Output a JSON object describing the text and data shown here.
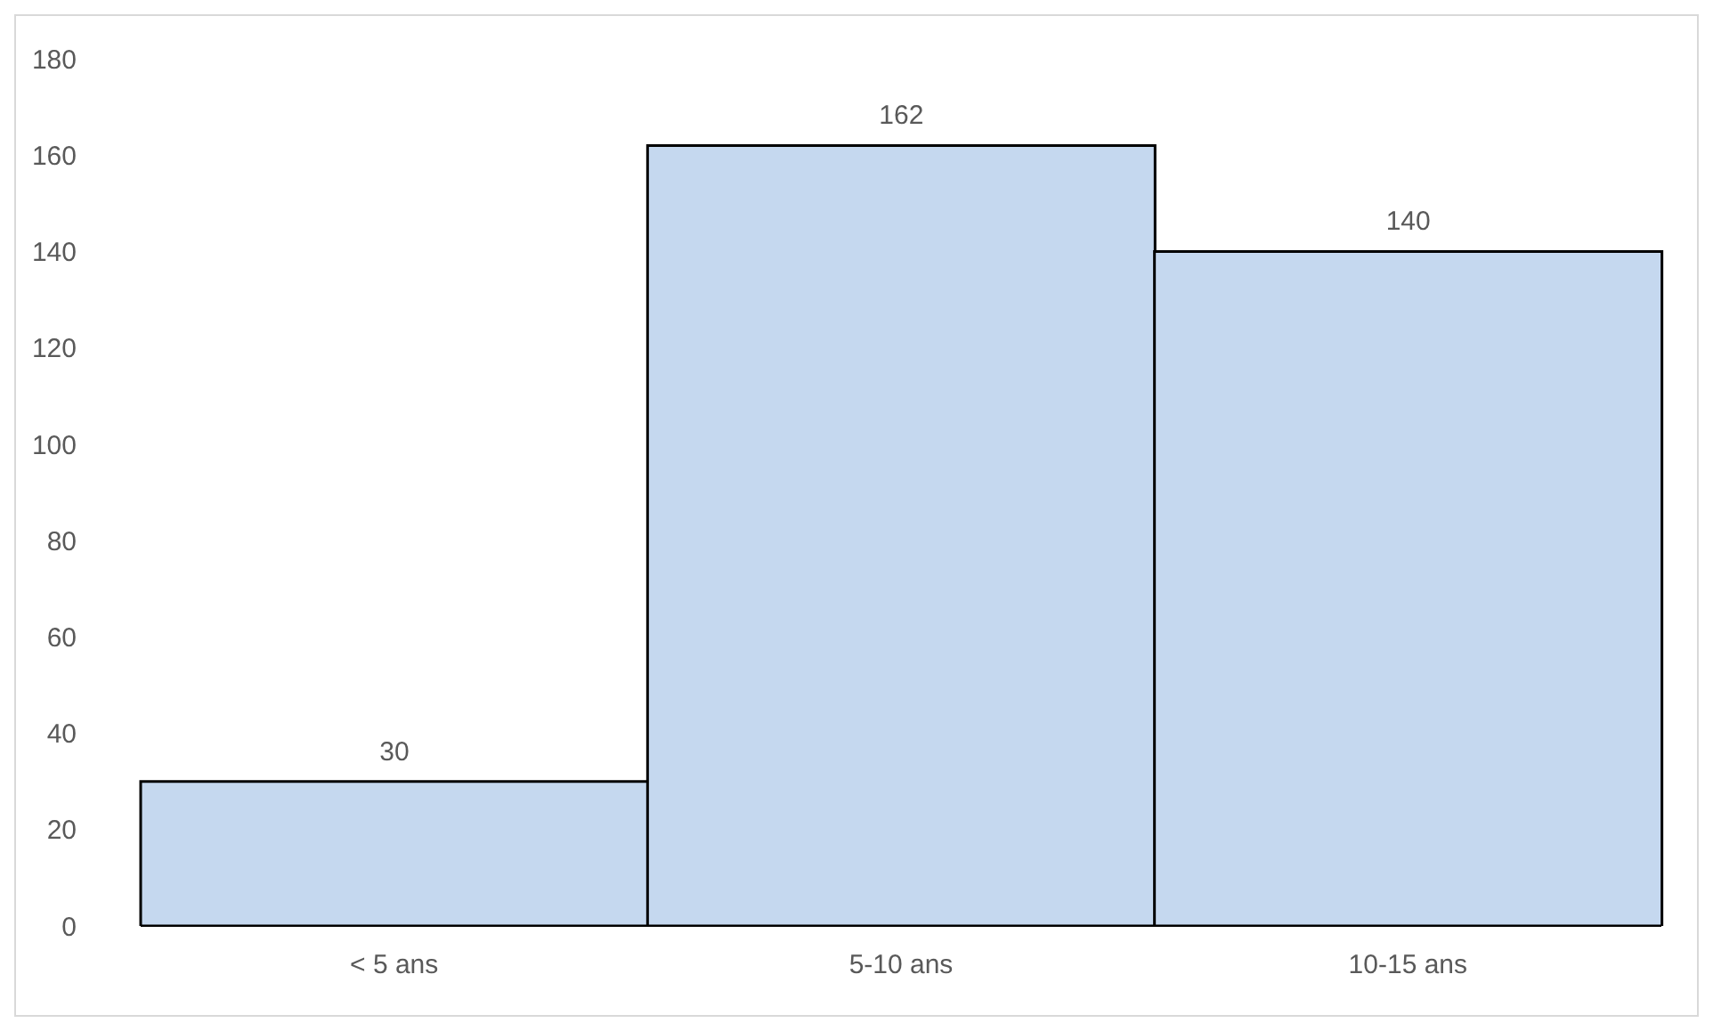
{
  "chart_data": {
    "type": "bar",
    "categories": [
      "< 5 ans",
      "5-10 ans",
      "10-15 ans"
    ],
    "values": [
      30,
      162,
      140
    ],
    "color": "#c5d8ef",
    "ylim": [
      0,
      180
    ],
    "yticks": [
      0,
      20,
      40,
      60,
      80,
      100,
      120,
      140,
      160,
      180
    ],
    "data_labels": true,
    "grid": false,
    "legend": false
  }
}
